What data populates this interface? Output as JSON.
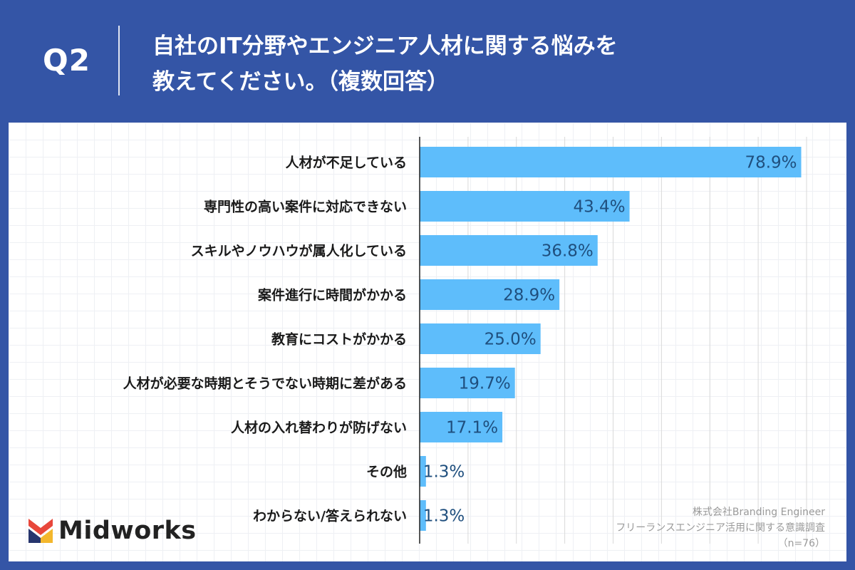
{
  "header": {
    "q_label": "Q2",
    "question_line1": "自社のIT分野やエンジニア人材に関する悩みを",
    "question_line2": "教えてください。（複数回答）"
  },
  "chart_data": {
    "type": "bar",
    "orientation": "horizontal",
    "categories": [
      "人材が不足している",
      "専門性の高い案件に対応できない",
      "スキルやノウハウが属人化している",
      "案件進行に時間がかかる",
      "教育にコストがかかる",
      "人材が必要な時期とそうでない時期に差がある",
      "人材の入れ替わりが防げない",
      "その他",
      "わからない/答えられない"
    ],
    "values": [
      78.9,
      43.4,
      36.8,
      28.9,
      25.0,
      19.7,
      17.1,
      1.3,
      1.3
    ],
    "value_labels": [
      "78.9%",
      "43.4%",
      "36.8%",
      "28.9%",
      "25.0%",
      "19.7%",
      "17.1%",
      "1.3%",
      "1.3%"
    ],
    "xlim": [
      0,
      80
    ],
    "grid": true,
    "bar_color": "#5ebdfb",
    "value_label_color": "#1f4f7e"
  },
  "logo": {
    "text": "Midworks"
  },
  "source": {
    "company": "株式会社Branding Engineer",
    "survey": "フリーランスエンジニア活用に関する意識調査",
    "sample": "（n=76）"
  },
  "colors": {
    "background": "#3455a6",
    "panel": "#ffffff"
  }
}
